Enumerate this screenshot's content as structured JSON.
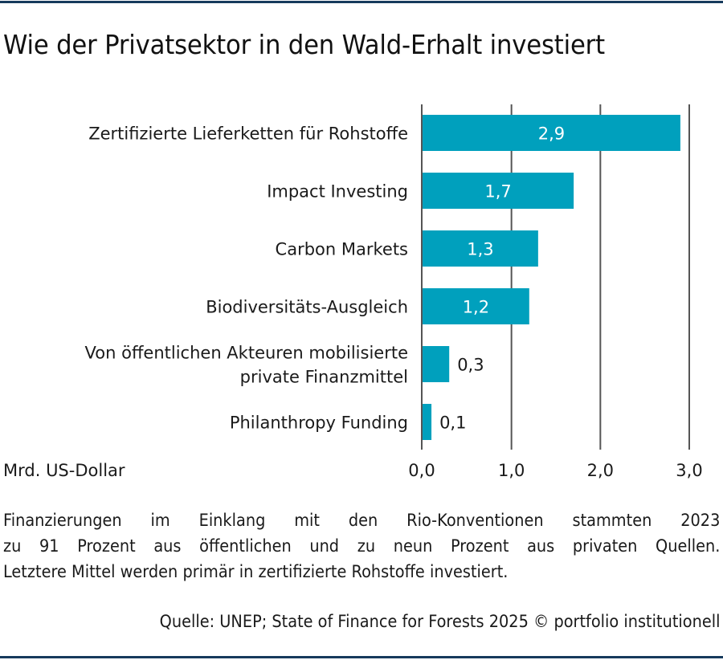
{
  "colors": {
    "bar": "#00a0bd",
    "rule": "#163a5c",
    "grid": "#555555",
    "text": "#1a1a1a"
  },
  "title": "Wie der Privatsektor in den Wald-Erhalt investiert",
  "chart_data": {
    "type": "bar",
    "orientation": "horizontal",
    "title": "Wie der Privatsektor in den Wald-Erhalt investiert",
    "xlabel": "Mrd. US-Dollar",
    "ylabel": "",
    "categories": [
      [
        "Zertifizierte Lieferketten für Rohstoffe"
      ],
      [
        "Impact Investing"
      ],
      [
        "Carbon Markets"
      ],
      [
        "Biodiversitäts-Ausgleich"
      ],
      [
        "Von öffentlichen Akteuren mobilisierte",
        "private Finanzmittel"
      ],
      [
        "Philanthropy Funding"
      ]
    ],
    "values": [
      2.9,
      1.7,
      1.3,
      1.2,
      0.3,
      0.1
    ],
    "value_labels": [
      "2,9",
      "1,7",
      "1,3",
      "1,2",
      "0,3",
      "0,1"
    ],
    "xlim": [
      0,
      3
    ],
    "ticks": [
      0,
      1,
      2,
      3
    ],
    "tick_labels": [
      "0,0",
      "1,0",
      "2,0",
      "3,0"
    ],
    "grid": true
  },
  "note_lines": [
    "Finanzierungen im Einklang mit den Rio-Konventionen stammten 2023",
    "zu 91 Prozent aus öffentlichen und zu neun Prozent aus privaten Quellen.",
    "Letztere Mittel werden primär in zertifizierte Rohstoffe investiert."
  ],
  "source": "Quelle: UNEP; State of Finance for Forests 2025 © portfolio institutionell"
}
